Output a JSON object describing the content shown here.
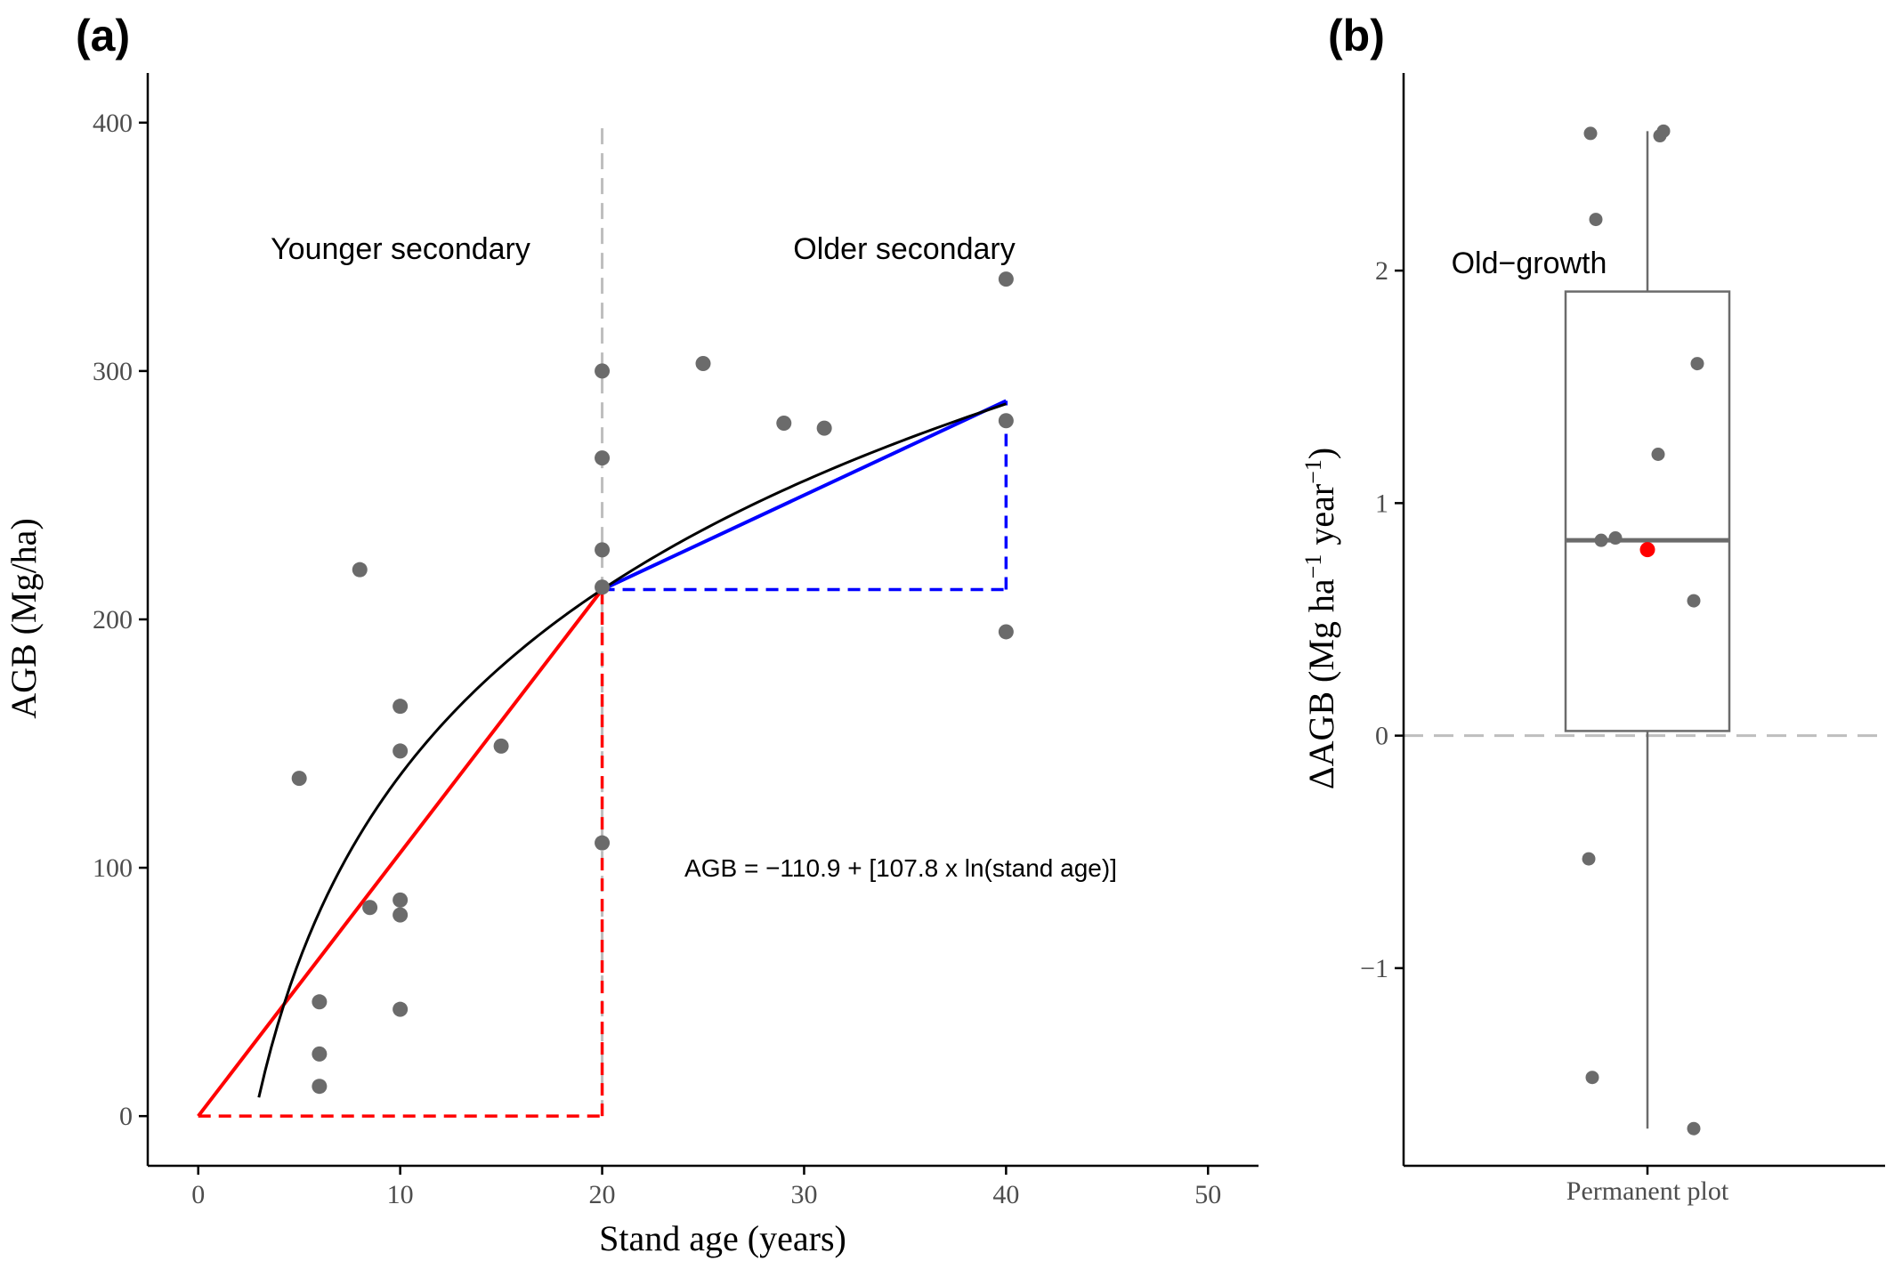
{
  "chart_data": [
    {
      "panel": "(a)",
      "type": "scatter",
      "xlabel": "Stand age (years)",
      "ylabel": "AGB (Mg/ha)",
      "xlim": [
        -2.5,
        52.5
      ],
      "ylim": [
        -20,
        420
      ],
      "x_ticks": [
        0,
        10,
        20,
        30,
        40,
        50
      ],
      "y_ticks": [
        0,
        100,
        200,
        300,
        400
      ],
      "grid": false,
      "annotations": {
        "younger": "Younger secondary",
        "older": "Older secondary",
        "formula": "AGB = −110.9 + [107.8 x ln(stand age)]"
      },
      "points": [
        {
          "x": 5,
          "y": 136
        },
        {
          "x": 6,
          "y": 46
        },
        {
          "x": 6,
          "y": 25
        },
        {
          "x": 6,
          "y": 12
        },
        {
          "x": 8,
          "y": 220
        },
        {
          "x": 8.5,
          "y": 84
        },
        {
          "x": 10,
          "y": 165
        },
        {
          "x": 10,
          "y": 147
        },
        {
          "x": 10,
          "y": 87
        },
        {
          "x": 10,
          "y": 81
        },
        {
          "x": 10,
          "y": 43
        },
        {
          "x": 15,
          "y": 149
        },
        {
          "x": 20,
          "y": 300
        },
        {
          "x": 20,
          "y": 265
        },
        {
          "x": 20,
          "y": 228
        },
        {
          "x": 20,
          "y": 213
        },
        {
          "x": 20,
          "y": 110
        },
        {
          "x": 25,
          "y": 303
        },
        {
          "x": 29,
          "y": 279
        },
        {
          "x": 31,
          "y": 277
        },
        {
          "x": 40,
          "y": 337
        },
        {
          "x": 40,
          "y": 280
        },
        {
          "x": 40,
          "y": 195
        }
      ],
      "fit_curve": {
        "intercept": -110.9,
        "slope_ln": 107.8,
        "x_from": 3,
        "x_to": 40,
        "color": "#000000"
      },
      "segments": [
        {
          "from": [
            0,
            0
          ],
          "to": [
            20,
            212
          ],
          "color": "#ff0000",
          "dash": false
        },
        {
          "from": [
            20,
            212
          ],
          "to": [
            40,
            288
          ],
          "color": "#0000ff",
          "dash": false
        },
        {
          "from": [
            0,
            0
          ],
          "to": [
            20,
            0
          ],
          "color": "#ff0000",
          "dash": true
        },
        {
          "from": [
            20,
            0
          ],
          "to": [
            20,
            212
          ],
          "color": "#ff0000",
          "dash": true
        },
        {
          "from": [
            20,
            212
          ],
          "to": [
            40,
            212
          ],
          "color": "#0000ff",
          "dash": true
        },
        {
          "from": [
            40,
            212
          ],
          "to": [
            40,
            288
          ],
          "color": "#0000ff",
          "dash": true
        }
      ],
      "vline": {
        "x": 20,
        "y_from": 0,
        "y_to": 400,
        "color": "#bebebe"
      },
      "point_color": "#6b6b6b"
    },
    {
      "panel": "(b)",
      "type": "box",
      "category": "Permanent plot",
      "ylabel_parts": {
        "delta": "Δ",
        "agb": "AGB (Mg ha",
        "neg1a": "−1",
        "mid": " year",
        "neg1b": "−1",
        "close": ")"
      },
      "ylim": [
        -1.85,
        2.85
      ],
      "y_ticks": [
        -1,
        0,
        1,
        2
      ],
      "y_tick_labels": [
        "−1",
        "0",
        "1",
        "2"
      ],
      "grid": false,
      "annotation": "Old−growth",
      "box": {
        "q1": 0.02,
        "median": 0.84,
        "q3": 1.91,
        "whisker_low": -1.69,
        "whisker_high": 2.6
      },
      "points": [
        {
          "x": -0.32,
          "y": 2.59
        },
        {
          "x": 0.07,
          "y": 2.58
        },
        {
          "x": 0.09,
          "y": 2.6
        },
        {
          "x": -0.29,
          "y": 2.22
        },
        {
          "x": 0.28,
          "y": 1.6
        },
        {
          "x": 0.06,
          "y": 1.21
        },
        {
          "x": -0.26,
          "y": 0.84
        },
        {
          "x": -0.18,
          "y": 0.85
        },
        {
          "x": 0.26,
          "y": 0.58
        },
        {
          "x": -0.33,
          "y": -0.53
        },
        {
          "x": -0.31,
          "y": -1.47
        },
        {
          "x": 0.26,
          "y": -1.69
        }
      ],
      "mean": 0.8,
      "mean_color": "#ff0000",
      "hline": {
        "y": 0,
        "color": "#bebebe"
      },
      "point_color": "#6b6b6b"
    }
  ]
}
